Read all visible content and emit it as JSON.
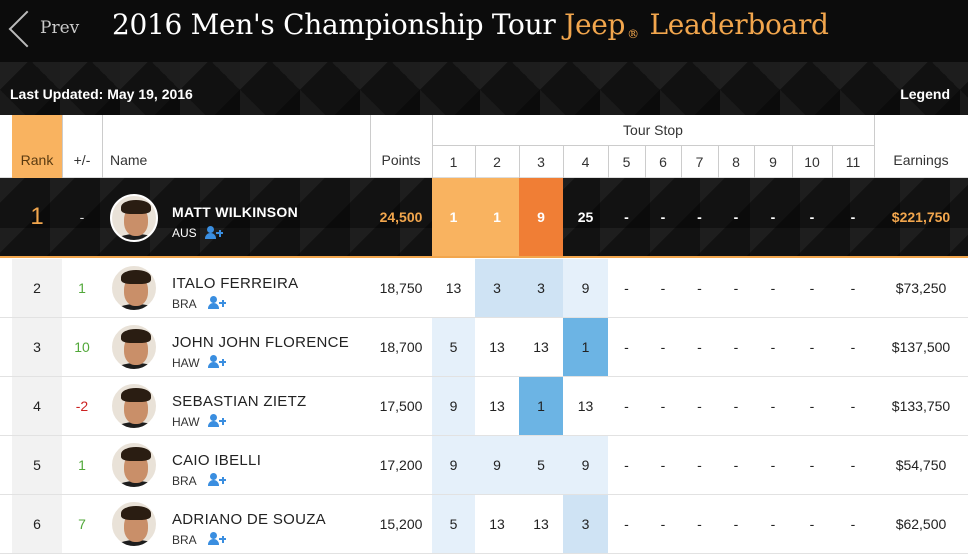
{
  "nav": {
    "prev_label": "Prev"
  },
  "title": {
    "main": "2016 Men's Championship Tour",
    "brand": "Jeep",
    "reg": "®",
    "suffix": "Leaderboard"
  },
  "status": {
    "last_updated": "Last Updated: May 19, 2016",
    "legend_label": "Legend"
  },
  "columns": {
    "rank": "Rank",
    "change": "+/-",
    "name": "Name",
    "points": "Points",
    "tour_stop": "Tour Stop",
    "earnings": "Earnings",
    "stops": [
      "1",
      "2",
      "3",
      "4",
      "5",
      "6",
      "7",
      "8",
      "9",
      "10",
      "11"
    ]
  },
  "colors": {
    "accent": "#f2a64d",
    "rank_header": "#f9b360",
    "leader_dark_orange": "#f07e35",
    "win": "#6cb4e4",
    "top3": "#cfe3f4",
    "top5": "#e5f0fa",
    "up": "#52a83a",
    "down": "#cc2222"
  },
  "leader": {
    "rank": "1",
    "change": "-",
    "name": "MATT WILKINSON",
    "country": "AUS",
    "points": "24,500",
    "earnings": "$221,750",
    "results": [
      "1",
      "1",
      "9",
      "25",
      "-",
      "-",
      "-",
      "-",
      "-",
      "-",
      "-"
    ],
    "highlights": [
      "light",
      "light",
      "dark",
      "none",
      "none",
      "none",
      "none",
      "none",
      "none",
      "none",
      "none"
    ]
  },
  "rows": [
    {
      "rank": "2",
      "change": "1",
      "dir": "up",
      "name": "ITALO FERREIRA",
      "country": "BRA",
      "points": "18,750",
      "earnings": "$73,250",
      "results": [
        "13",
        "3",
        "3",
        "9",
        "-",
        "-",
        "-",
        "-",
        "-",
        "-",
        "-"
      ],
      "highlights": [
        "none",
        "top3",
        "top3",
        "top5",
        "none",
        "none",
        "none",
        "none",
        "none",
        "none",
        "none"
      ]
    },
    {
      "rank": "3",
      "change": "10",
      "dir": "up",
      "name": "JOHN JOHN FLORENCE",
      "country": "HAW",
      "points": "18,700",
      "earnings": "$137,500",
      "results": [
        "5",
        "13",
        "13",
        "1",
        "-",
        "-",
        "-",
        "-",
        "-",
        "-",
        "-"
      ],
      "highlights": [
        "top5",
        "none",
        "none",
        "win",
        "none",
        "none",
        "none",
        "none",
        "none",
        "none",
        "none"
      ]
    },
    {
      "rank": "4",
      "change": "-2",
      "dir": "down",
      "name": "SEBASTIAN ZIETZ",
      "country": "HAW",
      "points": "17,500",
      "earnings": "$133,750",
      "results": [
        "9",
        "13",
        "1",
        "13",
        "-",
        "-",
        "-",
        "-",
        "-",
        "-",
        "-"
      ],
      "highlights": [
        "top5",
        "none",
        "win",
        "none",
        "none",
        "none",
        "none",
        "none",
        "none",
        "none",
        "none"
      ]
    },
    {
      "rank": "5",
      "change": "1",
      "dir": "up",
      "name": "CAIO IBELLI",
      "country": "BRA",
      "points": "17,200",
      "earnings": "$54,750",
      "results": [
        "9",
        "9",
        "5",
        "9",
        "-",
        "-",
        "-",
        "-",
        "-",
        "-",
        "-"
      ],
      "highlights": [
        "top5",
        "top5",
        "top5",
        "top5",
        "none",
        "none",
        "none",
        "none",
        "none",
        "none",
        "none"
      ]
    },
    {
      "rank": "6",
      "change": "7",
      "dir": "up",
      "name": "ADRIANO DE SOUZA",
      "country": "BRA",
      "points": "15,200",
      "earnings": "$62,500",
      "results": [
        "5",
        "13",
        "13",
        "3",
        "-",
        "-",
        "-",
        "-",
        "-",
        "-",
        "-"
      ],
      "highlights": [
        "top5",
        "none",
        "none",
        "top3",
        "none",
        "none",
        "none",
        "none",
        "none",
        "none",
        "none"
      ]
    }
  ]
}
